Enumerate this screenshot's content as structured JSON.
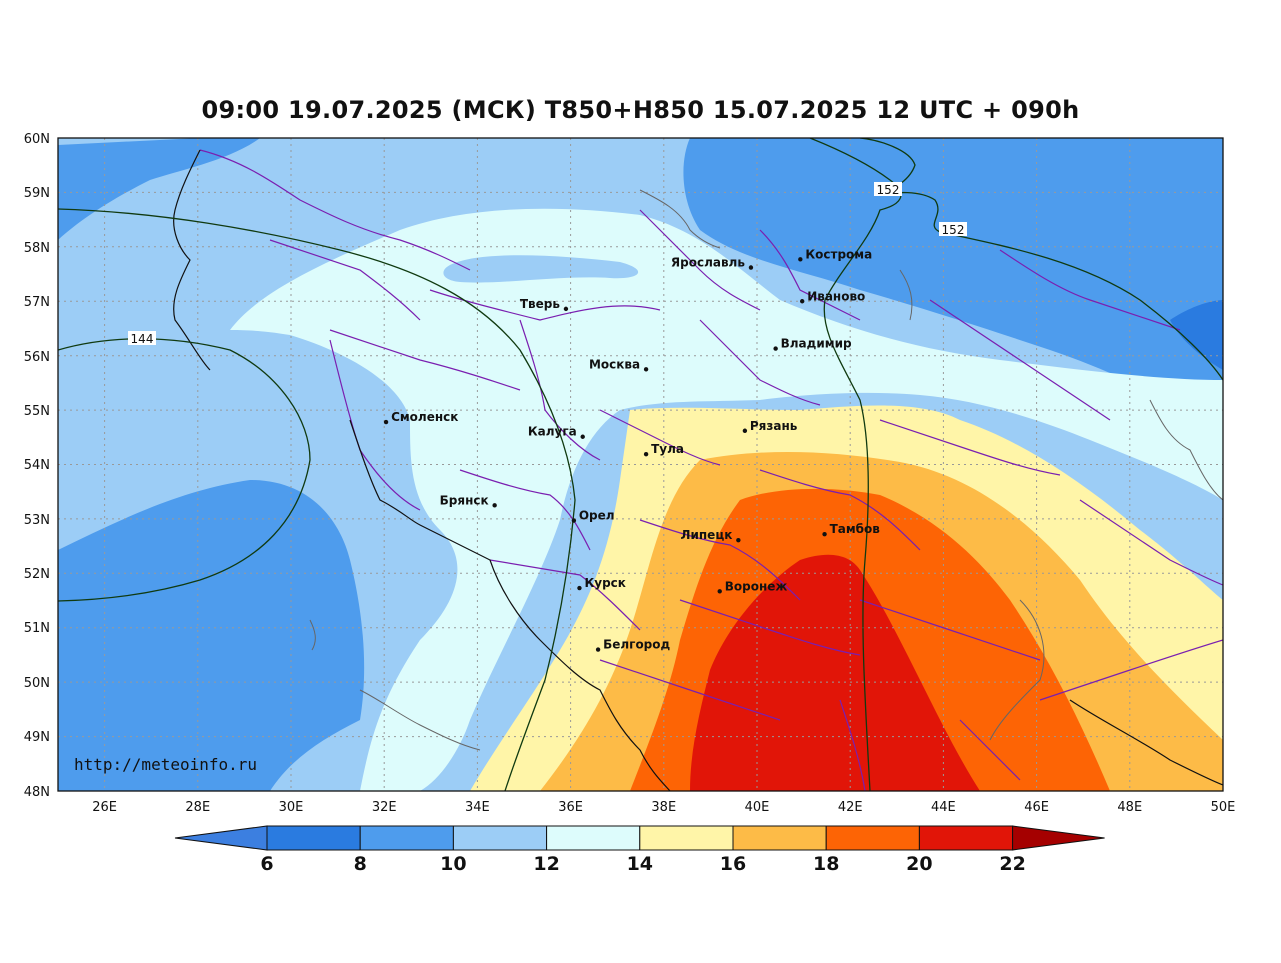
{
  "title": "09:00 19.07.2025 (МСК) T850+H850 15.07.2025 12 UTC + 090h",
  "watermark": "http://meteoinfo.ru",
  "lat_ticks": [
    "60N",
    "59N",
    "58N",
    "57N",
    "56N",
    "55N",
    "54N",
    "53N",
    "52N",
    "51N",
    "50N",
    "49N",
    "48N"
  ],
  "lon_ticks": [
    "26E",
    "28E",
    "30E",
    "32E",
    "34E",
    "36E",
    "38E",
    "40E",
    "42E",
    "44E",
    "46E",
    "48E",
    "50E"
  ],
  "extent": {
    "lon": [
      25,
      50
    ],
    "lat": [
      48,
      60
    ]
  },
  "cities": [
    {
      "name": "Ярославль",
      "lon": 39.87,
      "lat": 57.62
    },
    {
      "name": "Кострома",
      "lon": 40.93,
      "lat": 57.77
    },
    {
      "name": "Иваново",
      "lon": 40.97,
      "lat": 57.0
    },
    {
      "name": "Тверь",
      "lon": 35.9,
      "lat": 56.86
    },
    {
      "name": "Владимир",
      "lon": 40.4,
      "lat": 56.13
    },
    {
      "name": "Москва",
      "lon": 37.62,
      "lat": 55.75
    },
    {
      "name": "Смоленск",
      "lon": 32.04,
      "lat": 54.78
    },
    {
      "name": "Калуга",
      "lon": 36.26,
      "lat": 54.51
    },
    {
      "name": "Рязань",
      "lon": 39.74,
      "lat": 54.62
    },
    {
      "name": "Тула",
      "lon": 37.62,
      "lat": 54.19
    },
    {
      "name": "Брянск",
      "lon": 34.37,
      "lat": 53.25
    },
    {
      "name": "Орел",
      "lon": 36.07,
      "lat": 52.97
    },
    {
      "name": "Липецк",
      "lon": 39.6,
      "lat": 52.61
    },
    {
      "name": "Тамбов",
      "lon": 41.45,
      "lat": 52.72
    },
    {
      "name": "Курск",
      "lon": 36.19,
      "lat": 51.73
    },
    {
      "name": "Воронеж",
      "lon": 39.2,
      "lat": 51.67
    },
    {
      "name": "Белгород",
      "lon": 36.59,
      "lat": 50.6
    }
  ],
  "contour_labels": [
    "144",
    "152",
    "152"
  ],
  "colorbar": {
    "ticks": [
      "6",
      "8",
      "10",
      "12",
      "14",
      "16",
      "18",
      "20",
      "22"
    ],
    "colors": [
      "#3c7fe0",
      "#2a7be0",
      "#4e9ced",
      "#9ccdf6",
      "#ddfcfc",
      "#fff5a8",
      "#fdbb47",
      "#fd6405",
      "#e11508",
      "#a50000"
    ]
  },
  "palette": {
    "t_lt10": "#4e9ced",
    "t_10_12": "#9ccdf6",
    "t_12_14": "#ddfcfc",
    "t_14_16": "#fff5a8",
    "t_16_18": "#fdbb47",
    "t_18_20": "#fd6405",
    "t_20_22": "#e11508",
    "t_8_10_dark": "#2a7be0"
  }
}
